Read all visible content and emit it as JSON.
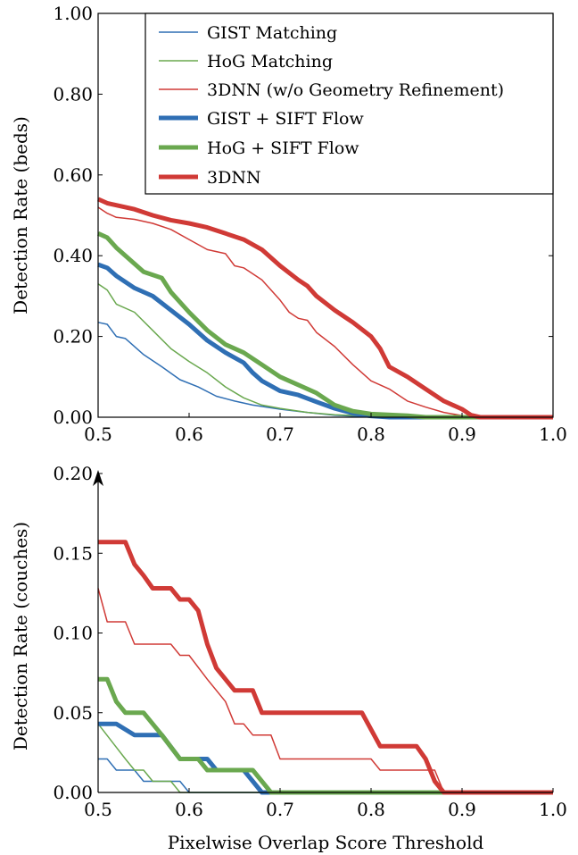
{
  "chart_data": [
    {
      "type": "line",
      "id": "beds",
      "xlabel": "",
      "ylabel": "Detection Rate (beds)",
      "xlim": [
        0.5,
        1.0
      ],
      "ylim": [
        0.0,
        1.0
      ],
      "xticks": [
        0.5,
        0.6,
        0.7,
        0.8,
        0.9,
        1.0
      ],
      "xtick_labels": [
        "0.5",
        "0.6",
        "0.7",
        "0.8",
        "0.9",
        "1.0"
      ],
      "yticks": [
        0.0,
        0.2,
        0.4,
        0.6,
        0.8,
        1.0
      ],
      "ytick_labels": [
        "0.00",
        "0.20",
        "0.40",
        "0.60",
        "0.80",
        "1.00"
      ],
      "grid": false,
      "legend": "top-right",
      "series": [
        {
          "name": "GIST Matching",
          "color": "#2f6fb4",
          "weight": "thin",
          "points": [
            [
              0.5,
              0.235
            ],
            [
              0.51,
              0.23
            ],
            [
              0.52,
              0.2
            ],
            [
              0.53,
              0.195
            ],
            [
              0.55,
              0.155
            ],
            [
              0.57,
              0.125
            ],
            [
              0.59,
              0.093
            ],
            [
              0.61,
              0.075
            ],
            [
              0.63,
              0.052
            ],
            [
              0.65,
              0.04
            ],
            [
              0.67,
              0.03
            ],
            [
              0.7,
              0.02
            ],
            [
              0.73,
              0.012
            ],
            [
              0.76,
              0.005
            ],
            [
              0.8,
              0.0
            ],
            [
              1.0,
              0.0
            ]
          ]
        },
        {
          "name": "HoG Matching",
          "color": "#6aa84f",
          "weight": "thin",
          "points": [
            [
              0.5,
              0.33
            ],
            [
              0.51,
              0.315
            ],
            [
              0.52,
              0.28
            ],
            [
              0.54,
              0.26
            ],
            [
              0.56,
              0.215
            ],
            [
              0.58,
              0.17
            ],
            [
              0.6,
              0.138
            ],
            [
              0.62,
              0.11
            ],
            [
              0.64,
              0.075
            ],
            [
              0.66,
              0.048
            ],
            [
              0.68,
              0.03
            ],
            [
              0.7,
              0.022
            ],
            [
              0.73,
              0.012
            ],
            [
              0.76,
              0.006
            ],
            [
              0.8,
              0.003
            ],
            [
              0.86,
              0.0
            ],
            [
              1.0,
              0.0
            ]
          ]
        },
        {
          "name": "3DNN (w/o Geometry Refinement)",
          "color": "#d03a36",
          "weight": "thin",
          "points": [
            [
              0.5,
              0.52
            ],
            [
              0.51,
              0.505
            ],
            [
              0.52,
              0.495
            ],
            [
              0.54,
              0.49
            ],
            [
              0.56,
              0.48
            ],
            [
              0.58,
              0.465
            ],
            [
              0.6,
              0.44
            ],
            [
              0.62,
              0.415
            ],
            [
              0.64,
              0.405
            ],
            [
              0.65,
              0.375
            ],
            [
              0.66,
              0.37
            ],
            [
              0.68,
              0.34
            ],
            [
              0.7,
              0.29
            ],
            [
              0.71,
              0.26
            ],
            [
              0.72,
              0.245
            ],
            [
              0.73,
              0.24
            ],
            [
              0.74,
              0.21
            ],
            [
              0.76,
              0.175
            ],
            [
              0.78,
              0.13
            ],
            [
              0.8,
              0.09
            ],
            [
              0.82,
              0.07
            ],
            [
              0.84,
              0.04
            ],
            [
              0.86,
              0.025
            ],
            [
              0.88,
              0.012
            ],
            [
              0.9,
              0.004
            ],
            [
              0.92,
              0.0
            ],
            [
              1.0,
              0.0
            ]
          ]
        },
        {
          "name": "GIST + SIFT Flow",
          "color": "#2f6fb4",
          "weight": "thick",
          "points": [
            [
              0.5,
              0.378
            ],
            [
              0.51,
              0.37
            ],
            [
              0.52,
              0.35
            ],
            [
              0.54,
              0.32
            ],
            [
              0.56,
              0.3
            ],
            [
              0.58,
              0.265
            ],
            [
              0.6,
              0.23
            ],
            [
              0.62,
              0.19
            ],
            [
              0.64,
              0.16
            ],
            [
              0.66,
              0.135
            ],
            [
              0.67,
              0.11
            ],
            [
              0.68,
              0.09
            ],
            [
              0.7,
              0.065
            ],
            [
              0.72,
              0.055
            ],
            [
              0.74,
              0.038
            ],
            [
              0.76,
              0.022
            ],
            [
              0.78,
              0.01
            ],
            [
              0.8,
              0.003
            ],
            [
              0.82,
              0.0
            ],
            [
              1.0,
              0.0
            ]
          ]
        },
        {
          "name": "HoG + SIFT Flow",
          "color": "#6aa84f",
          "weight": "thick",
          "points": [
            [
              0.5,
              0.455
            ],
            [
              0.51,
              0.445
            ],
            [
              0.52,
              0.42
            ],
            [
              0.54,
              0.38
            ],
            [
              0.55,
              0.36
            ],
            [
              0.57,
              0.345
            ],
            [
              0.58,
              0.31
            ],
            [
              0.6,
              0.26
            ],
            [
              0.62,
              0.215
            ],
            [
              0.64,
              0.18
            ],
            [
              0.66,
              0.16
            ],
            [
              0.68,
              0.13
            ],
            [
              0.7,
              0.1
            ],
            [
              0.72,
              0.08
            ],
            [
              0.74,
              0.06
            ],
            [
              0.76,
              0.03
            ],
            [
              0.78,
              0.015
            ],
            [
              0.8,
              0.008
            ],
            [
              0.84,
              0.004
            ],
            [
              0.86,
              0.0
            ],
            [
              1.0,
              0.0
            ]
          ]
        },
        {
          "name": "3DNN",
          "color": "#d03a36",
          "weight": "thick",
          "points": [
            [
              0.5,
              0.54
            ],
            [
              0.51,
              0.53
            ],
            [
              0.52,
              0.525
            ],
            [
              0.54,
              0.515
            ],
            [
              0.56,
              0.5
            ],
            [
              0.58,
              0.488
            ],
            [
              0.6,
              0.48
            ],
            [
              0.62,
              0.47
            ],
            [
              0.64,
              0.455
            ],
            [
              0.66,
              0.44
            ],
            [
              0.68,
              0.415
            ],
            [
              0.7,
              0.375
            ],
            [
              0.72,
              0.34
            ],
            [
              0.73,
              0.325
            ],
            [
              0.74,
              0.3
            ],
            [
              0.76,
              0.265
            ],
            [
              0.78,
              0.235
            ],
            [
              0.8,
              0.2
            ],
            [
              0.81,
              0.17
            ],
            [
              0.82,
              0.125
            ],
            [
              0.84,
              0.1
            ],
            [
              0.86,
              0.07
            ],
            [
              0.88,
              0.04
            ],
            [
              0.9,
              0.02
            ],
            [
              0.91,
              0.005
            ],
            [
              0.92,
              0.0
            ],
            [
              1.0,
              0.0
            ]
          ]
        }
      ]
    },
    {
      "type": "line",
      "id": "couches",
      "xlabel": "Pixelwise Overlap Score Threshold",
      "ylabel": "Detection Rate (couches)",
      "xlim": [
        0.5,
        1.0
      ],
      "ylim": [
        0.0,
        0.2
      ],
      "xticks": [
        0.5,
        0.6,
        0.7,
        0.8,
        0.9,
        1.0
      ],
      "xtick_labels": [
        "0.5",
        "0.6",
        "0.7",
        "0.8",
        "0.9",
        "1.0"
      ],
      "yticks": [
        0.0,
        0.05,
        0.1,
        0.15,
        0.2
      ],
      "ytick_labels": [
        "0.00",
        "0.05",
        "0.10",
        "0.15",
        "0.20"
      ],
      "grid": false,
      "y_axis_arrow": true,
      "series": [
        {
          "name": "GIST Matching",
          "color": "#2f6fb4",
          "weight": "thin",
          "points": [
            [
              0.5,
              0.021
            ],
            [
              0.51,
              0.021
            ],
            [
              0.52,
              0.014
            ],
            [
              0.54,
              0.014
            ],
            [
              0.55,
              0.007
            ],
            [
              0.59,
              0.007
            ],
            [
              0.6,
              0.0
            ],
            [
              1.0,
              0.0
            ]
          ]
        },
        {
          "name": "HoG Matching",
          "color": "#6aa84f",
          "weight": "thin",
          "points": [
            [
              0.5,
              0.043
            ],
            [
              0.53,
              0.021
            ],
            [
              0.54,
              0.014
            ],
            [
              0.55,
              0.014
            ],
            [
              0.56,
              0.007
            ],
            [
              0.58,
              0.007
            ],
            [
              0.59,
              0.0
            ],
            [
              1.0,
              0.0
            ]
          ]
        },
        {
          "name": "3DNN (w/o Geometry Refinement)",
          "color": "#d03a36",
          "weight": "thin",
          "points": [
            [
              0.5,
              0.128
            ],
            [
              0.51,
              0.107
            ],
            [
              0.53,
              0.107
            ],
            [
              0.54,
              0.093
            ],
            [
              0.58,
              0.093
            ],
            [
              0.59,
              0.086
            ],
            [
              0.6,
              0.086
            ],
            [
              0.62,
              0.071
            ],
            [
              0.64,
              0.057
            ],
            [
              0.65,
              0.043
            ],
            [
              0.66,
              0.043
            ],
            [
              0.67,
              0.036
            ],
            [
              0.69,
              0.036
            ],
            [
              0.7,
              0.021
            ],
            [
              0.8,
              0.021
            ],
            [
              0.81,
              0.014
            ],
            [
              0.87,
              0.014
            ],
            [
              0.88,
              0.0
            ],
            [
              1.0,
              0.0
            ]
          ]
        },
        {
          "name": "GIST + SIFT Flow",
          "color": "#2f6fb4",
          "weight": "thick",
          "points": [
            [
              0.5,
              0.043
            ],
            [
              0.52,
              0.043
            ],
            [
              0.54,
              0.036
            ],
            [
              0.57,
              0.036
            ],
            [
              0.59,
              0.021
            ],
            [
              0.61,
              0.021
            ],
            [
              0.62,
              0.021
            ],
            [
              0.63,
              0.014
            ],
            [
              0.66,
              0.014
            ],
            [
              0.68,
              0.0
            ],
            [
              1.0,
              0.0
            ]
          ]
        },
        {
          "name": "HoG + SIFT Flow",
          "color": "#6aa84f",
          "weight": "thick",
          "points": [
            [
              0.5,
              0.071
            ],
            [
              0.51,
              0.071
            ],
            [
              0.52,
              0.057
            ],
            [
              0.53,
              0.05
            ],
            [
              0.55,
              0.05
            ],
            [
              0.57,
              0.036
            ],
            [
              0.59,
              0.021
            ],
            [
              0.61,
              0.021
            ],
            [
              0.62,
              0.014
            ],
            [
              0.67,
              0.014
            ],
            [
              0.69,
              0.0
            ],
            [
              1.0,
              0.0
            ]
          ]
        },
        {
          "name": "3DNN",
          "color": "#d03a36",
          "weight": "thick",
          "points": [
            [
              0.5,
              0.157
            ],
            [
              0.53,
              0.157
            ],
            [
              0.54,
              0.143
            ],
            [
              0.55,
              0.136
            ],
            [
              0.56,
              0.128
            ],
            [
              0.58,
              0.128
            ],
            [
              0.59,
              0.121
            ],
            [
              0.6,
              0.121
            ],
            [
              0.61,
              0.114
            ],
            [
              0.62,
              0.093
            ],
            [
              0.63,
              0.078
            ],
            [
              0.65,
              0.064
            ],
            [
              0.67,
              0.064
            ],
            [
              0.68,
              0.05
            ],
            [
              0.79,
              0.05
            ],
            [
              0.81,
              0.029
            ],
            [
              0.85,
              0.029
            ],
            [
              0.86,
              0.021
            ],
            [
              0.87,
              0.007
            ],
            [
              0.88,
              0.0
            ],
            [
              1.0,
              0.0
            ]
          ]
        }
      ]
    }
  ],
  "legend": {
    "entries": [
      {
        "label": "GIST Matching",
        "color": "#2f6fb4",
        "weight": "thin"
      },
      {
        "label": "HoG Matching",
        "color": "#6aa84f",
        "weight": "thin"
      },
      {
        "label": "3DNN (w/o Geometry Refinement)",
        "color": "#d03a36",
        "weight": "thin"
      },
      {
        "label": "GIST + SIFT Flow",
        "color": "#2f6fb4",
        "weight": "thick"
      },
      {
        "label": "HoG + SIFT Flow",
        "color": "#6aa84f",
        "weight": "thick"
      },
      {
        "label": "3DNN",
        "color": "#d03a36",
        "weight": "thick"
      }
    ]
  }
}
